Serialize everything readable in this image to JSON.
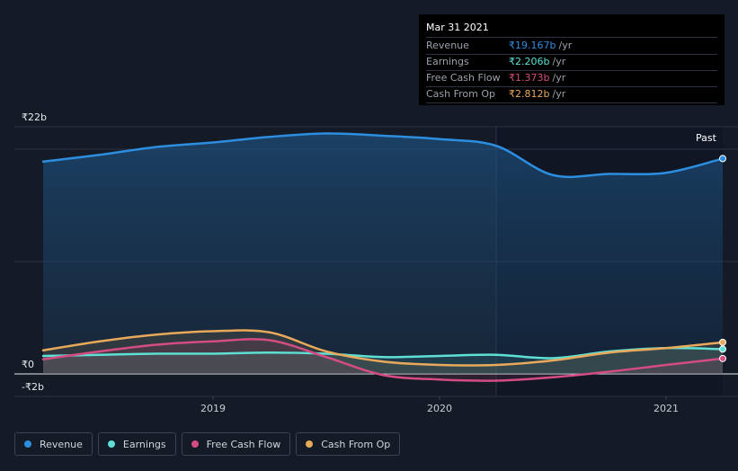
{
  "chart_data": {
    "type": "area",
    "y_unit": "₹ billions",
    "ylim": [
      -2,
      22
    ],
    "y_tick_labels": [
      {
        "value": 22,
        "label": "₹22b"
      },
      {
        "value": 0,
        "label": "₹0"
      },
      {
        "value": -2,
        "label": "-₹2b"
      }
    ],
    "x_range": [
      2018.25,
      2021.25
    ],
    "x_tick_labels": [
      {
        "value": 2019,
        "label": "2019"
      },
      {
        "value": 2020,
        "label": "2020"
      },
      {
        "value": 2021,
        "label": "2021"
      }
    ],
    "past_region_start": 2020.25,
    "past_label": "Past",
    "grid": true,
    "legend_position": "bottom-left",
    "series": [
      {
        "name": "Revenue",
        "color": "#2d8ee0",
        "filled": true,
        "points": [
          [
            2018.25,
            18.9
          ],
          [
            2018.5,
            19.5
          ],
          [
            2018.75,
            20.2
          ],
          [
            2019.0,
            20.6
          ],
          [
            2019.25,
            21.1
          ],
          [
            2019.5,
            21.4
          ],
          [
            2019.75,
            21.2
          ],
          [
            2020.0,
            20.9
          ],
          [
            2020.25,
            20.3
          ],
          [
            2020.5,
            17.7
          ],
          [
            2020.75,
            17.8
          ],
          [
            2021.0,
            17.9
          ],
          [
            2021.25,
            19.167
          ]
        ]
      },
      {
        "name": "Earnings",
        "color": "#5ee0d4",
        "filled": false,
        "points": [
          [
            2018.25,
            1.6
          ],
          [
            2018.5,
            1.7
          ],
          [
            2018.75,
            1.8
          ],
          [
            2019.0,
            1.8
          ],
          [
            2019.25,
            1.9
          ],
          [
            2019.5,
            1.8
          ],
          [
            2019.75,
            1.5
          ],
          [
            2020.0,
            1.6
          ],
          [
            2020.25,
            1.7
          ],
          [
            2020.5,
            1.4
          ],
          [
            2020.75,
            2.0
          ],
          [
            2021.0,
            2.3
          ],
          [
            2021.25,
            2.206
          ]
        ]
      },
      {
        "name": "Free Cash Flow",
        "color": "#d44d82",
        "filled": false,
        "points": [
          [
            2018.25,
            1.3
          ],
          [
            2018.5,
            2.0
          ],
          [
            2018.75,
            2.6
          ],
          [
            2019.0,
            2.9
          ],
          [
            2019.25,
            3.0
          ],
          [
            2019.5,
            1.5
          ],
          [
            2019.75,
            -0.1
          ],
          [
            2020.0,
            -0.5
          ],
          [
            2020.25,
            -0.6
          ],
          [
            2020.5,
            -0.3
          ],
          [
            2020.75,
            0.2
          ],
          [
            2021.0,
            0.8
          ],
          [
            2021.25,
            1.373
          ]
        ]
      },
      {
        "name": "Cash From Op",
        "color": "#e8a95a",
        "filled": false,
        "points": [
          [
            2018.25,
            2.1
          ],
          [
            2018.5,
            2.9
          ],
          [
            2018.75,
            3.5
          ],
          [
            2019.0,
            3.8
          ],
          [
            2019.25,
            3.7
          ],
          [
            2019.5,
            2.0
          ],
          [
            2019.75,
            1.1
          ],
          [
            2020.0,
            0.8
          ],
          [
            2020.25,
            0.8
          ],
          [
            2020.5,
            1.2
          ],
          [
            2020.75,
            1.9
          ],
          [
            2021.0,
            2.3
          ],
          [
            2021.25,
            2.812
          ]
        ]
      }
    ]
  },
  "tooltip": {
    "date": "Mar 31 2021",
    "unit": "/yr",
    "rows": [
      {
        "label": "Revenue",
        "value": "₹19.167b",
        "color": "#2d8ee0"
      },
      {
        "label": "Earnings",
        "value": "₹2.206b",
        "color": "#5ee0d4"
      },
      {
        "label": "Free Cash Flow",
        "value": "₹1.373b",
        "color": "#d44d82"
      },
      {
        "label": "Cash From Op",
        "value": "₹2.812b",
        "color": "#e8a95a"
      }
    ]
  },
  "legend": {
    "items": [
      {
        "label": "Revenue",
        "color": "#2d8ee0"
      },
      {
        "label": "Earnings",
        "color": "#5ee0d4"
      },
      {
        "label": "Free Cash Flow",
        "color": "#d44d82"
      },
      {
        "label": "Cash From Op",
        "color": "#e8a95a"
      }
    ]
  }
}
